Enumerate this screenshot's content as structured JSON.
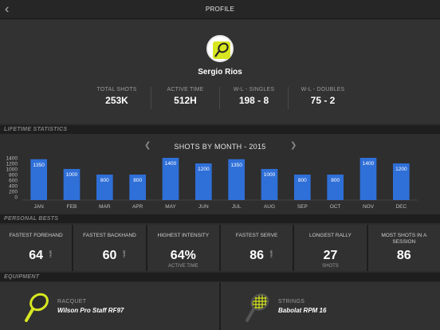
{
  "header": {
    "title": "PROFILE",
    "back_glyph": "‹"
  },
  "profile": {
    "name": "Sergio Rios",
    "stats": [
      {
        "label": "TOTAL SHOTS",
        "value": "253K"
      },
      {
        "label": "ACTIVE TIME",
        "value": "512H"
      },
      {
        "label": "W-L - SINGLES",
        "value": "198 - 8"
      },
      {
        "label": "W-L - DOUBLES",
        "value": "75 - 2"
      }
    ]
  },
  "sections": {
    "lifetime": "LIFETIME STATISTICS",
    "personal": "PERSONAL BESTS",
    "equipment": "EQUIPMENT"
  },
  "chart_data": {
    "type": "bar",
    "title": "SHOTS BY MONTH - 2015",
    "categories": [
      "JAN",
      "FEB",
      "MAR",
      "APR",
      "MAY",
      "JUN",
      "JUL",
      "AUG",
      "SEP",
      "OCT",
      "NOV",
      "DEC"
    ],
    "values": [
      1350,
      1000,
      800,
      800,
      1400,
      1200,
      1350,
      1000,
      800,
      800,
      1400,
      1200
    ],
    "yticks": [
      1400,
      1200,
      1000,
      800,
      600,
      400,
      200,
      0
    ],
    "ylim": [
      0,
      1400
    ],
    "bar_color": "#2f6fd8"
  },
  "personal_bests": [
    {
      "label": "FASTEST FOREHAND",
      "value": "64",
      "unit": "MPH",
      "sub": ""
    },
    {
      "label": "FASTEST BACKHAND",
      "value": "60",
      "unit": "MPH",
      "sub": ""
    },
    {
      "label": "HIGHEST INTENSITY",
      "value": "64%",
      "unit": "",
      "sub": "ACTIVE TIME"
    },
    {
      "label": "FASTEST SERVE",
      "value": "86",
      "unit": "MPH",
      "sub": ""
    },
    {
      "label": "LONGEST RALLY",
      "value": "27",
      "unit": "",
      "sub": "SHOTS"
    },
    {
      "label": "MOST SHOTS IN A SESSION",
      "value": "86",
      "unit": "",
      "sub": ""
    }
  ],
  "equipment": [
    {
      "label": "RACQUET",
      "value": "Wilson Pro Staff RF97",
      "icon": "racquet-icon"
    },
    {
      "label": "STRINGS",
      "value": "Babolat RPM 16",
      "icon": "strings-icon"
    }
  ],
  "colors": {
    "accent": "#d7e621",
    "bar": "#2f6fd8"
  }
}
